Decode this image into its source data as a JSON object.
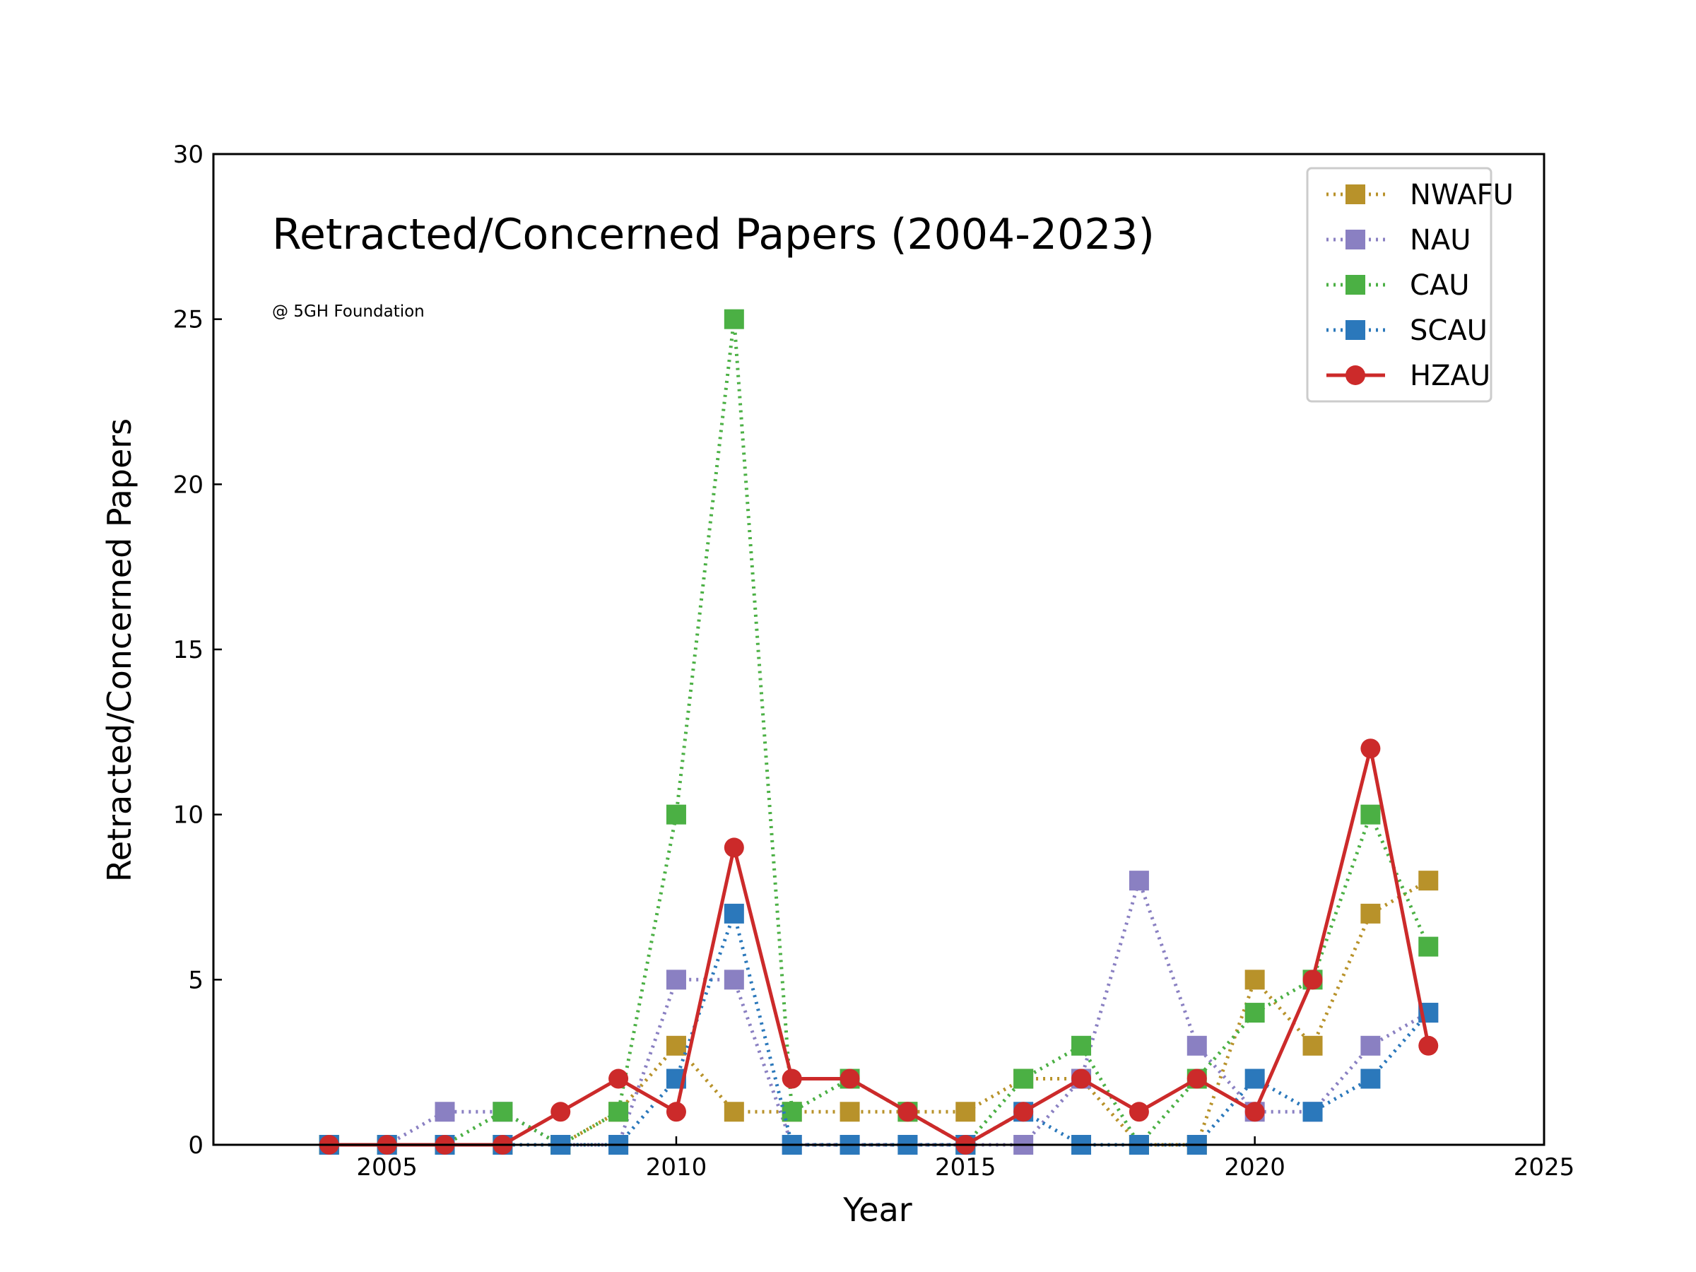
{
  "chart_data": {
    "type": "line",
    "title": "Retracted/Concerned Papers (2004-2023)",
    "subtitle": "@ 5GH Foundation",
    "xlabel": "Year",
    "ylabel": "Retracted/Concerned Papers",
    "xlim": [
      2002,
      2025
    ],
    "ylim": [
      0,
      30
    ],
    "xticks": [
      2005,
      2010,
      2015,
      2020,
      2025
    ],
    "yticks": [
      0,
      5,
      10,
      15,
      20,
      25,
      30
    ],
    "grid": false,
    "legend_position": "top-right",
    "x": [
      2004,
      2005,
      2006,
      2007,
      2008,
      2009,
      2010,
      2011,
      2012,
      2013,
      2014,
      2015,
      2016,
      2017,
      2018,
      2019,
      2020,
      2021,
      2022,
      2023
    ],
    "series": [
      {
        "name": "NWAFU",
        "color": "#b8922a",
        "marker": "square",
        "line": "dotted",
        "values": [
          0,
          0,
          0,
          0,
          0,
          1,
          3,
          1,
          1,
          1,
          1,
          1,
          2,
          2,
          0,
          0,
          5,
          3,
          7,
          8
        ]
      },
      {
        "name": "NAU",
        "color": "#8a80c2",
        "marker": "square",
        "line": "dotted",
        "values": [
          0,
          0,
          1,
          1,
          0,
          0,
          5,
          5,
          0,
          0,
          0,
          0,
          0,
          2,
          8,
          3,
          1,
          1,
          3,
          4
        ]
      },
      {
        "name": "CAU",
        "color": "#4bb044",
        "marker": "square",
        "line": "dotted",
        "values": [
          0,
          0,
          0,
          1,
          0,
          1,
          10,
          25,
          1,
          2,
          1,
          0,
          2,
          3,
          0,
          2,
          4,
          5,
          10,
          6
        ]
      },
      {
        "name": "SCAU",
        "color": "#2b78bb",
        "marker": "square",
        "line": "dotted",
        "values": [
          0,
          0,
          0,
          0,
          0,
          0,
          2,
          7,
          0,
          0,
          0,
          0,
          1,
          0,
          0,
          0,
          2,
          1,
          2,
          4
        ]
      },
      {
        "name": "HZAU",
        "color": "#cc2a2a",
        "marker": "circle",
        "line": "solid",
        "values": [
          0,
          0,
          0,
          0,
          1,
          2,
          1,
          9,
          2,
          2,
          1,
          0,
          1,
          2,
          1,
          2,
          1,
          5,
          12,
          3
        ]
      }
    ]
  }
}
